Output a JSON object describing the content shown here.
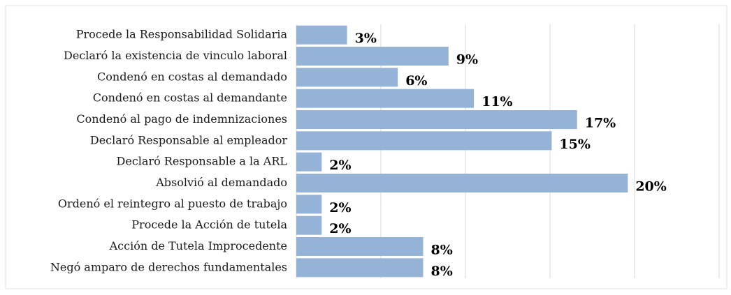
{
  "chart_data": {
    "type": "barh",
    "categories": [
      "Procede la Responsabilidad Solidaria",
      "Declaró la existencia de vinculo laboral",
      "Condenó en costas al demandado",
      "Condenó en costas al demandante",
      "Condenó al pago de indemnizaciones",
      "Declaró Responsable al empleador",
      "Declaró Responsable a la ARL",
      "Absolvió al demandado",
      "Ordenó el reintegro al puesto de trabajo",
      "Procede la Acción de tutela",
      "Acción de Tutela Improcedente",
      "Negó amparo de derechos fundamentales"
    ],
    "values": [
      3,
      9,
      6,
      10.5,
      16.6,
      15.1,
      1.5,
      19.6,
      1.5,
      1.5,
      7.5,
      7.5
    ],
    "value_labels": [
      "3%",
      "9%",
      "6%",
      "11%",
      "17%",
      "15%",
      "2%",
      "20%",
      "2%",
      "2%",
      "8%",
      "8%"
    ],
    "color": "#95b3d7",
    "xlim": [
      0,
      25
    ],
    "xticks": [
      0,
      5,
      10,
      15,
      20,
      25
    ],
    "grid": true
  }
}
